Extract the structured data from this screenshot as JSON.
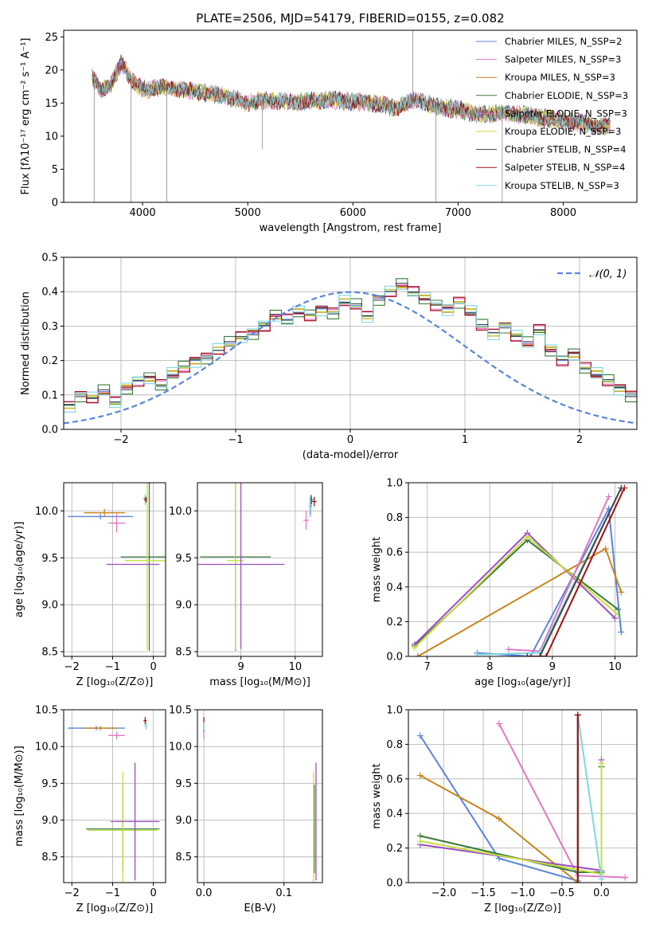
{
  "title": "PLATE=2506, MJD=54179, FIBERID=0155, z=0.082",
  "model_colors": [
    "#5b84dd",
    "#e377c2",
    "#c8841a",
    "#3b7a3b",
    "#e377c2",
    "#d4d44a",
    "#444444",
    "#a01010",
    "#7fd6e0"
  ],
  "chart_data": [
    {
      "id": "spectrum",
      "type": "line",
      "xlabel": "wavelength [Angstrom, rest frame]",
      "ylabel": "Flux [fλ10⁻¹⁷ erg cm⁻² s⁻¹ A⁻¹]",
      "xlim": [
        3250,
        8700
      ],
      "ylim": [
        0,
        26
      ],
      "xticks": [
        4000,
        5000,
        6000,
        7000,
        8000
      ],
      "yticks": [
        0,
        5,
        10,
        15,
        20,
        25
      ],
      "grid": false,
      "legend_position": "top-right",
      "series": [
        {
          "name": "Chabrier MILES, N_SSP=2"
        },
        {
          "name": "Salpeter MILES, N_SSP=3"
        },
        {
          "name": "Kroupa MILES, N_SSP=3"
        },
        {
          "name": "Chabrier ELODIE, N_SSP=3"
        },
        {
          "name": "Salpeter ELODIE, N_SSP=3"
        },
        {
          "name": "Kroupa ELODIE, N_SSP=3"
        },
        {
          "name": "Chabrier STELIB, N_SSP=4"
        },
        {
          "name": "Salpeter STELIB, N_SSP=4"
        },
        {
          "name": "Kroupa STELIB, N_SSP=3"
        }
      ],
      "continuum": [
        [
          3520,
          19
        ],
        [
          3600,
          17
        ],
        [
          3700,
          18
        ],
        [
          3800,
          21
        ],
        [
          3900,
          18.5
        ],
        [
          4000,
          17
        ],
        [
          4200,
          17.5
        ],
        [
          4400,
          17
        ],
        [
          4600,
          16.5
        ],
        [
          4800,
          16
        ],
        [
          5000,
          15
        ],
        [
          5200,
          15.5
        ],
        [
          5400,
          15.2
        ],
        [
          5600,
          15.3
        ],
        [
          5800,
          15.5
        ],
        [
          6000,
          15.2
        ],
        [
          6200,
          15
        ],
        [
          6400,
          14.2
        ],
        [
          6600,
          15.5
        ],
        [
          6800,
          14.5
        ],
        [
          7000,
          14
        ],
        [
          7200,
          13.3
        ],
        [
          7400,
          13.5
        ],
        [
          7600,
          13.2
        ],
        [
          7800,
          12.8
        ],
        [
          8000,
          12.3
        ],
        [
          8200,
          12
        ],
        [
          8300,
          11.5
        ],
        [
          8450,
          11.5
        ]
      ]
    },
    {
      "id": "residuals",
      "type": "histogram",
      "xlabel": "(data-model)/error",
      "ylabel": "Normed distribution",
      "xlim": [
        -2.5,
        2.5
      ],
      "ylim": [
        0,
        0.5
      ],
      "xticks": [
        -2,
        -1,
        0,
        1,
        2
      ],
      "yticks": [
        0.0,
        0.1,
        0.2,
        0.3,
        0.4,
        0.5
      ],
      "grid": true,
      "legend_position": "top-right",
      "reference_label": "𝒩(0, 1)",
      "bin_edges_start": -2.5,
      "bin_width": 0.1,
      "values": [
        0.07,
        0.1,
        0.09,
        0.11,
        0.08,
        0.12,
        0.14,
        0.15,
        0.13,
        0.16,
        0.18,
        0.2,
        0.21,
        0.23,
        0.25,
        0.27,
        0.28,
        0.3,
        0.33,
        0.32,
        0.34,
        0.33,
        0.35,
        0.34,
        0.37,
        0.36,
        0.33,
        0.38,
        0.4,
        0.42,
        0.4,
        0.38,
        0.36,
        0.35,
        0.37,
        0.34,
        0.3,
        0.28,
        0.3,
        0.27,
        0.25,
        0.29,
        0.23,
        0.2,
        0.22,
        0.18,
        0.16,
        0.14,
        0.12,
        0.1
      ],
      "series_offsets": [
        0,
        0.012,
        -0.01,
        0.02,
        -0.015,
        0.008,
        -0.005,
        0.015,
        -0.02
      ]
    },
    {
      "id": "z-age",
      "type": "errorbar",
      "xlabel": "Z [log₁₀(Z/Z⊙)]",
      "ylabel": "age  [log₁₀(age/yr)]",
      "xlim": [
        -2.2,
        0.3
      ],
      "ylim": [
        8.45,
        10.3
      ],
      "xticks": [
        -2,
        -1,
        0
      ],
      "yticks": [
        8.5,
        9.0,
        9.5,
        10.0
      ],
      "grid": true,
      "points": [
        {
          "color": "#5b84dd",
          "x": -1.3,
          "xerr": 0.8,
          "y": 9.94,
          "yerr": 0.03
        },
        {
          "color": "#c8841a",
          "x": -1.2,
          "xerr": 0.5,
          "y": 9.98,
          "yerr": 0.04
        },
        {
          "color": "#e377c2",
          "x": -0.9,
          "xerr": 0.2,
          "y": 9.87,
          "yerr": 0.1
        },
        {
          "color": "#3b7a3b",
          "x": -0.2,
          "xerr": 0.04,
          "y": 10.13,
          "yerr": 0.03
        },
        {
          "color": "#7fd6e0",
          "x": -0.2,
          "xerr": 0.03,
          "y": 10.12,
          "yerr": 0.06
        },
        {
          "color": "#a01010",
          "x": -0.18,
          "xerr": 0.04,
          "y": 10.12,
          "yerr": 0.03
        },
        {
          "color": "#3b7a3b",
          "x": -0.1,
          "xerr": 0.7,
          "y": 9.51,
          "yerr": 1.0
        },
        {
          "color": "#c5e040",
          "x": -0.15,
          "xerr": 0.55,
          "y": 9.47,
          "yerr": 0.95
        },
        {
          "color": "#9b4fc4",
          "x": -0.5,
          "xerr": 0.65,
          "y": 9.43,
          "yerr": 0.0
        }
      ]
    },
    {
      "id": "mass-age",
      "type": "errorbar",
      "xlabel": "mass [log₁₀(M/M⊙)]",
      "ylabel": "",
      "xlim": [
        8.2,
        10.5
      ],
      "ylim": [
        8.45,
        10.3
      ],
      "xticks": [
        9,
        10
      ],
      "yticks": [
        8.5,
        9.0,
        9.5,
        10.0
      ],
      "grid": true,
      "points": [
        {
          "color": "#3b7a3b",
          "x": 8.9,
          "xerr": 0.65,
          "y": 9.51,
          "yerr": 1.0
        },
        {
          "color": "#c5e040",
          "x": 8.9,
          "xerr": 0.15,
          "y": 9.47,
          "yerr": 0.95
        },
        {
          "color": "#9b4fc4",
          "x": 9.0,
          "xerr": 0.8,
          "y": 9.43,
          "yerr": 0.9
        },
        {
          "color": "#e377c2",
          "x": 10.2,
          "xerr": 0.05,
          "y": 9.9,
          "yerr": 0.1
        },
        {
          "color": "#5b84dd",
          "x": 10.28,
          "xerr": 0.03,
          "y": 10.05,
          "yerr": 0.1
        },
        {
          "color": "#3b7a3b",
          "x": 10.3,
          "xerr": 0.03,
          "y": 10.12,
          "yerr": 0.05
        },
        {
          "color": "#a01010",
          "x": 10.35,
          "xerr": 0.04,
          "y": 10.1,
          "yerr": 0.05
        },
        {
          "color": "#7fd6e0",
          "x": 10.27,
          "xerr": 0.02,
          "y": 10.05,
          "yerr": 0.12
        }
      ]
    },
    {
      "id": "age-weight",
      "type": "line",
      "xlabel": "age  [log₁₀(age/yr)]",
      "ylabel": "mass weight",
      "xlim": [
        6.7,
        10.35
      ],
      "ylim": [
        0,
        1.0
      ],
      "xticks": [
        7,
        8,
        9,
        10
      ],
      "yticks": [
        0.0,
        0.2,
        0.4,
        0.6,
        0.8,
        1.0
      ],
      "grid": true,
      "series": [
        {
          "color": "#3b7a3b",
          "x": [
            6.8,
            8.6,
            10.05
          ],
          "y": [
            0.06,
            0.67,
            0.27
          ]
        },
        {
          "color": "#9b4fc4",
          "x": [
            6.8,
            8.6,
            10.0
          ],
          "y": [
            0.07,
            0.71,
            0.22
          ]
        },
        {
          "color": "#c5e040",
          "x": [
            6.8,
            8.6,
            10.05
          ],
          "y": [
            0.05,
            0.69,
            0.24
          ]
        },
        {
          "color": "#5b84dd",
          "x": [
            7.8,
            8.65,
            9.9,
            10.1
          ],
          "y": [
            0.02,
            0.0,
            0.85,
            0.14
          ]
        },
        {
          "color": "#c8841a",
          "x": [
            6.85,
            9.85,
            10.1
          ],
          "y": [
            0.0,
            0.62,
            0.37
          ]
        },
        {
          "color": "#e377c2",
          "x": [
            8.3,
            8.8,
            9.9
          ],
          "y": [
            0.04,
            0.03,
            0.92
          ]
        },
        {
          "color": "#7fd6e0",
          "x": [
            7.8,
            8.8,
            10.1
          ],
          "y": [
            0.01,
            0.02,
            0.97
          ]
        },
        {
          "color": "#444444",
          "x": [
            8.8,
            10.1
          ],
          "y": [
            0.0,
            0.97
          ]
        },
        {
          "color": "#a01010",
          "x": [
            8.6,
            8.9,
            10.15
          ],
          "y": [
            0.0,
            0.0,
            0.97
          ]
        }
      ]
    },
    {
      "id": "z-mass",
      "type": "errorbar",
      "xlabel": "Z [log₁₀(Z/Z⊙)]",
      "ylabel": "mass [log₁₀(M/M⊙)]",
      "xlim": [
        -2.2,
        0.3
      ],
      "ylim": [
        8.15,
        10.5
      ],
      "xticks": [
        -2,
        -1,
        0
      ],
      "yticks": [
        8.5,
        9.0,
        9.5,
        10.0,
        10.5
      ],
      "grid": true,
      "points": [
        {
          "color": "#5b84dd",
          "x": -1.4,
          "xerr": 0.7,
          "y": 10.25,
          "yerr": 0.03
        },
        {
          "color": "#c8841a",
          "x": -1.3,
          "xerr": 0.4,
          "y": 10.25,
          "yerr": 0.03
        },
        {
          "color": "#e377c2",
          "x": -0.9,
          "xerr": 0.2,
          "y": 10.15,
          "yerr": 0.05
        },
        {
          "color": "#a01010",
          "x": -0.2,
          "xerr": 0.04,
          "y": 10.35,
          "yerr": 0.05
        },
        {
          "color": "#7fd6e0",
          "x": -0.18,
          "xerr": 0.04,
          "y": 10.28,
          "yerr": 0.05
        },
        {
          "color": "#3b7a3b",
          "x": -0.75,
          "xerr": 0.9,
          "y": 8.88,
          "yerr": 0.6
        },
        {
          "color": "#c5e040",
          "x": -0.75,
          "xerr": 0.85,
          "y": 8.86,
          "yerr": 0.8
        },
        {
          "color": "#9b4fc4",
          "x": -0.45,
          "xerr": 0.6,
          "y": 8.98,
          "yerr": 0.8
        }
      ]
    },
    {
      "id": "ebv-mass",
      "type": "errorbar",
      "xlabel": "E(B-V)",
      "ylabel": "",
      "xlim": [
        -0.008,
        0.148
      ],
      "ylim": [
        8.15,
        10.5
      ],
      "xticks": [
        0.0,
        0.1
      ],
      "yticks": [
        8.5,
        9.0,
        9.5,
        10.0,
        10.5
      ],
      "grid": true,
      "points": [
        {
          "color": "#e377c2",
          "x": 0.0,
          "xerr": 0.0,
          "y": 10.2,
          "yerr": 0.1
        },
        {
          "color": "#5b84dd",
          "x": 0.0,
          "xerr": 0.0,
          "y": 10.25,
          "yerr": 0.05
        },
        {
          "color": "#a01010",
          "x": 0.0,
          "xerr": 0.0,
          "y": 10.35,
          "yerr": 0.05
        },
        {
          "color": "#7fd6e0",
          "x": 0.0,
          "xerr": 0.0,
          "y": 10.28,
          "yerr": 0.05
        },
        {
          "color": "#3b7a3b",
          "x": 0.138,
          "xerr": 0.0,
          "y": 8.88,
          "yerr": 0.6
        },
        {
          "color": "#c5e040",
          "x": 0.137,
          "xerr": 0.0,
          "y": 8.86,
          "yerr": 0.8
        },
        {
          "color": "#9b4fc4",
          "x": 0.14,
          "xerr": 0.0,
          "y": 8.98,
          "yerr": 0.8
        }
      ]
    },
    {
      "id": "z-weight",
      "type": "line",
      "xlabel": "Z [log₁₀(Z/Z⊙)]",
      "ylabel": "mass weight",
      "xlim": [
        -2.45,
        0.45
      ],
      "ylim": [
        0,
        1.0
      ],
      "xticks": [
        -2.0,
        -1.5,
        -1.0,
        -0.5,
        0.0
      ],
      "yticks": [
        0.0,
        0.2,
        0.4,
        0.6,
        0.8,
        1.0
      ],
      "grid": true,
      "series": [
        {
          "color": "#5b84dd",
          "x": [
            -2.3,
            -1.3,
            -0.3
          ],
          "y": [
            0.85,
            0.14,
            0.01
          ]
        },
        {
          "color": "#c8841a",
          "x": [
            -2.3,
            -1.3,
            -0.3
          ],
          "y": [
            0.62,
            0.37,
            0.0
          ]
        },
        {
          "color": "#e377c2",
          "x": [
            -1.3,
            -0.3,
            0.3
          ],
          "y": [
            0.92,
            0.04,
            0.03
          ]
        },
        {
          "color": "#3b7a3b",
          "x": [
            -2.3,
            -0.3,
            0.0,
            0.0
          ],
          "y": [
            0.27,
            0.06,
            0.06,
            0.67
          ]
        },
        {
          "color": "#9b4fc4",
          "x": [
            -2.3,
            0.0,
            0.0
          ],
          "y": [
            0.22,
            0.07,
            0.71
          ]
        },
        {
          "color": "#c5e040",
          "x": [
            -2.3,
            0.0,
            0.0
          ],
          "y": [
            0.24,
            0.05,
            0.69
          ]
        },
        {
          "color": "#7fd6e0",
          "x": [
            -0.3,
            -0.3,
            0.0
          ],
          "y": [
            0.0,
            0.97,
            0.02
          ]
        },
        {
          "color": "#444444",
          "x": [
            -0.3,
            -0.3
          ],
          "y": [
            0.0,
            0.97
          ]
        },
        {
          "color": "#a01010",
          "x": [
            -0.3,
            -0.3
          ],
          "y": [
            0.0,
            0.97
          ]
        }
      ]
    }
  ]
}
